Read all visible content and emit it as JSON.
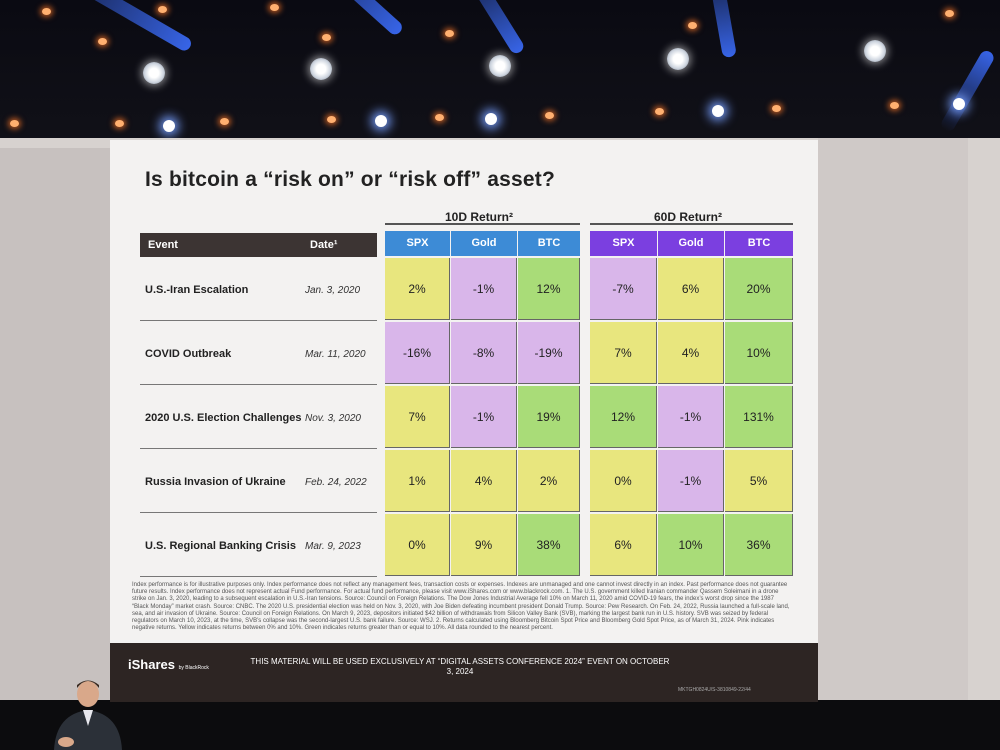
{
  "slide": {
    "title": "Is bitcoin a “risk on” or “risk off” asset?",
    "header_event": "Event",
    "header_date": "Date¹",
    "group_10d": "10D Return²",
    "group_60d": "60D Return²",
    "columns_10d": [
      "SPX",
      "Gold",
      "BTC"
    ],
    "columns_60d": [
      "SPX",
      "Gold",
      "BTC"
    ],
    "rows": [
      {
        "event": "U.S.-Iran Escalation",
        "date": "Jan. 3, 2020",
        "r10": [
          "2%",
          "-1%",
          "12%"
        ],
        "r60": [
          "-7%",
          "6%",
          "20%"
        ]
      },
      {
        "event": "COVID Outbreak",
        "date": "Mar. 11, 2020",
        "r10": [
          "-16%",
          "-8%",
          "-19%"
        ],
        "r60": [
          "7%",
          "4%",
          "10%"
        ]
      },
      {
        "event": "2020 U.S. Election Challenges",
        "date": "Nov. 3, 2020",
        "r10": [
          "7%",
          "-1%",
          "19%"
        ],
        "r60": [
          "12%",
          "-1%",
          "131%"
        ]
      },
      {
        "event": "Russia Invasion of Ukraine",
        "date": "Feb. 24, 2022",
        "r10": [
          "1%",
          "4%",
          "2%"
        ],
        "r60": [
          "0%",
          "-1%",
          "5%"
        ]
      },
      {
        "event": "U.S. Regional Banking Crisis",
        "date": "Mar. 9, 2023",
        "r10": [
          "0%",
          "9%",
          "38%"
        ],
        "r60": [
          "6%",
          "10%",
          "36%"
        ]
      }
    ],
    "colors": {
      "negative": "#d9b6ea",
      "low": "#e8e67e",
      "high": "#a9dc78",
      "header_10d": "#3d8bd6",
      "header_60d": "#7b3fe0",
      "event_header": "#3c3433"
    },
    "notes": "Index performance is for illustrative purposes only. Index performance does not reflect any management fees, transaction costs or expenses. Indexes are unmanaged and one cannot invest directly in an index. Past performance does not guarantee future results. Index performance does not represent actual Fund performance. For actual fund performance, please visit www.iShares.com or www.blackrock.com. 1. The U.S. government killed Iranian commander Qassem Soleimani in a drone strike on Jan. 3, 2020, leading to a subsequent escalation in U.S.-Iran tensions. Source: Council on Foreign Relations. The Dow Jones Industrial Average fell 10% on March 11, 2020 amid COVID-19 fears, the index’s worst drop since the 1987 “Black Monday” market crash. Source: CNBC. The 2020 U.S. presidential election was held on Nov. 3, 2020, with Joe Biden defeating incumbent president Donald Trump. Source: Pew Research. On Feb. 24, 2022, Russia launched a full-scale land, sea, and air invasion of Ukraine. Source: Council on Foreign Relations. On March 9, 2023, depositors initiated $42 billion of withdrawals from Silicon Valley Bank (SVB), marking the largest bank run in U.S. history. SVB was seized by federal regulators on March 10, 2023, at the time, SVB’s collapse was the second-largest U.S. bank failure. Source: WSJ. 2. Returns calculated using Bloomberg Bitcoin Spot Price and Bloomberg Gold Spot Price, as of March 31, 2024. Pink indicates negative returns. Yellow indicates returns between 0% and 10%. Green indicates returns greater than or equal to 10%. All data rounded to the nearest percent.",
    "brand": "iShares",
    "brand_sub": "by BlackRock",
    "disclaimer": "THIS MATERIAL WILL BE USED EXCLUSIVELY AT “DIGITAL ASSETS CONFERENCE 2024” EVENT ON OCTOBER 3, 2024",
    "code": "MKTGH0824U/S-3810849-22/44"
  }
}
